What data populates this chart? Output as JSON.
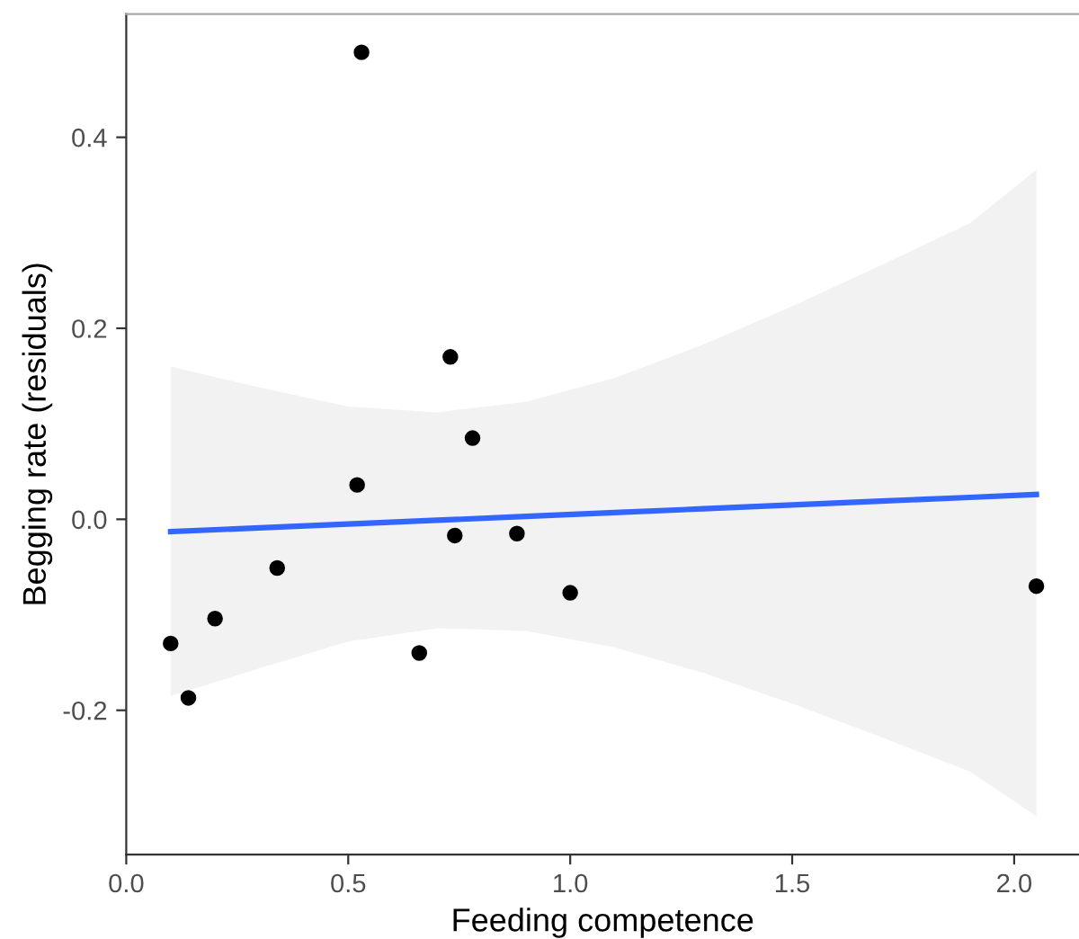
{
  "chart_data": {
    "type": "scatter",
    "xlabel": "Feeding competence",
    "ylabel": "Begging rate (residuals)",
    "xlim": [
      0,
      2.146
    ],
    "ylim": [
      -0.351,
      0.529
    ],
    "xticks": [
      {
        "value": 0,
        "label": "0.0"
      },
      0.5,
      {
        "value": 1,
        "label": "1.0"
      },
      1.5,
      {
        "value": 2,
        "label": "2.0"
      }
    ],
    "yticks": [
      {
        "value": -0.2,
        "label": "-0.2"
      },
      {
        "value": 0,
        "label": "0.0"
      },
      0.2,
      0.4
    ],
    "grid": false,
    "legend": false,
    "marker": "circle",
    "series": [
      {
        "color": "#000000",
        "x": [
          0.1,
          0.14,
          0.2,
          0.34,
          0.52,
          0.53,
          0.66,
          0.73,
          0.74,
          0.78,
          0.88,
          1.0,
          2.05
        ],
        "values": [
          -0.13,
          -0.187,
          -0.104,
          -0.051,
          0.036,
          0.489,
          -0.14,
          0.17,
          -0.017,
          0.085,
          -0.015,
          -0.077,
          -0.07
        ]
      },
      {
        "type": "line",
        "color": "#3366ff",
        "marker": "none",
        "x": [
          0.1,
          0.3,
          0.5,
          0.7,
          0.9,
          1.1,
          1.3,
          1.5,
          1.7,
          1.9,
          2.05
        ],
        "values": [
          -0.013,
          -0.009,
          -0.005,
          -0.001,
          0.003,
          0.007,
          0.011,
          0.015,
          0.019,
          0.023,
          0.026
        ],
        "lower": [
          -0.185,
          -0.156,
          -0.128,
          -0.114,
          -0.117,
          -0.134,
          -0.161,
          -0.193,
          -0.228,
          -0.264,
          -0.311
        ],
        "upper": [
          0.16,
          0.138,
          0.118,
          0.112,
          0.123,
          0.148,
          0.183,
          0.223,
          0.266,
          0.31,
          0.366
        ]
      }
    ]
  }
}
